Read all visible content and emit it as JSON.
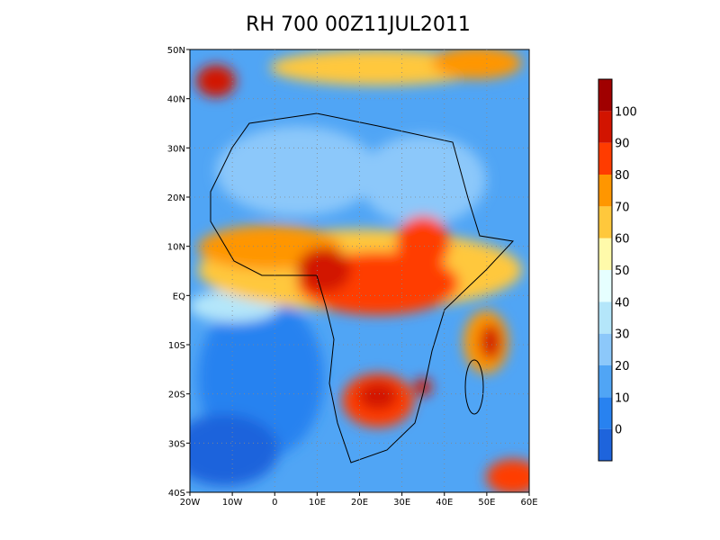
{
  "title": "RH 700 00Z11JUL2011",
  "lon_labels": [
    "20W",
    "10W",
    "0",
    "10E",
    "20E",
    "30E",
    "40E",
    "50E",
    "60E"
  ],
  "lat_labels": [
    "50N",
    "40N",
    "30N",
    "20N",
    "10N",
    "EQ",
    "10S",
    "20S",
    "30S",
    "40S"
  ],
  "colorbar": {
    "labels": [
      "0",
      "10",
      "20",
      "30",
      "40",
      "50",
      "60",
      "70",
      "80",
      "90",
      "100"
    ],
    "colors": [
      "#1e64dc",
      "#2882f0",
      "#50a5f5",
      "#8cc8fa",
      "#b4e6fa",
      "#e6ffff",
      "#fffaaa",
      "#ffc83c",
      "#ff9600",
      "#ff3c00",
      "#d21400",
      "#a00000"
    ]
  }
}
